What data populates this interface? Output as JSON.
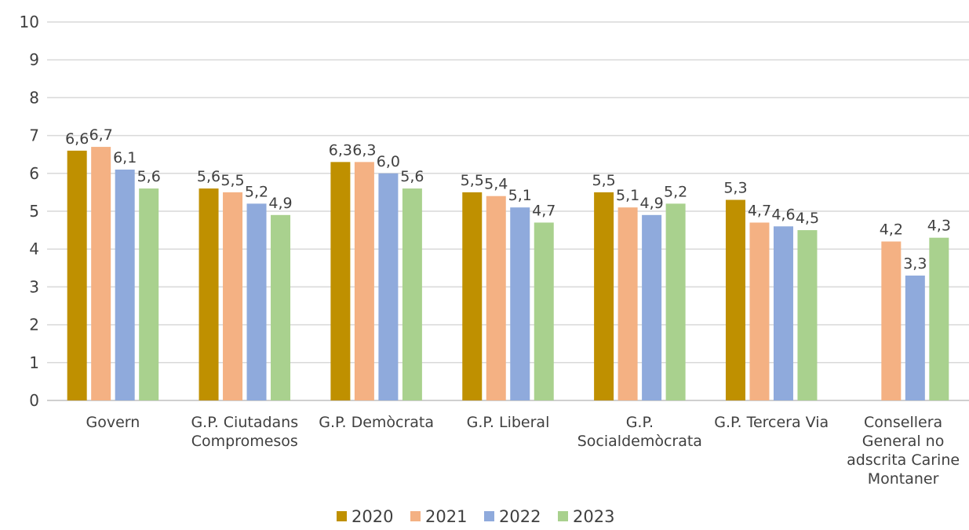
{
  "chart_data": {
    "type": "bar",
    "title": "",
    "xlabel": "",
    "ylabel": "",
    "ylim": [
      0,
      10
    ],
    "yticks": [
      "0",
      "1",
      "2",
      "3",
      "4",
      "5",
      "6",
      "7",
      "8",
      "9",
      "10"
    ],
    "grid": true,
    "legend_position": "bottom",
    "categories": [
      [
        "Govern"
      ],
      [
        "G.P. Ciutadans",
        "Compromesos"
      ],
      [
        "G.P. Demòcrata"
      ],
      [
        "G.P. Liberal"
      ],
      [
        "G.P.",
        "Socialdemòcrata"
      ],
      [
        "G.P. Tercera Via"
      ],
      [
        "Consellera",
        "General no",
        "adscrita Carine",
        "Montaner"
      ]
    ],
    "series": [
      {
        "name": "2020",
        "color": "#bf9000",
        "values": [
          6.6,
          5.6,
          6.3,
          5.5,
          5.5,
          5.3,
          null
        ],
        "labels": [
          "6,6",
          "5,6",
          "6,3",
          "5,5",
          "5,5",
          "5,3",
          ""
        ]
      },
      {
        "name": "2021",
        "color": "#f4b183",
        "values": [
          6.7,
          5.5,
          6.3,
          5.4,
          5.1,
          4.7,
          4.2
        ],
        "labels": [
          "6,7",
          "5,5",
          "6,3",
          "5,4",
          "5,1",
          "4,7",
          "4,2"
        ]
      },
      {
        "name": "2022",
        "color": "#8faadc",
        "values": [
          6.1,
          5.2,
          6.0,
          5.1,
          4.9,
          4.6,
          3.3
        ],
        "labels": [
          "6,1",
          "5,2",
          "6,0",
          "5,1",
          "4,9",
          "4,6",
          "3,3"
        ]
      },
      {
        "name": "2023",
        "color": "#a9d18e",
        "values": [
          5.6,
          4.9,
          5.6,
          4.7,
          5.2,
          4.5,
          4.3
        ],
        "labels": [
          "5,6",
          "4,9",
          "5,6",
          "4,7",
          "5,2",
          "4,5",
          "4,3"
        ]
      }
    ]
  }
}
